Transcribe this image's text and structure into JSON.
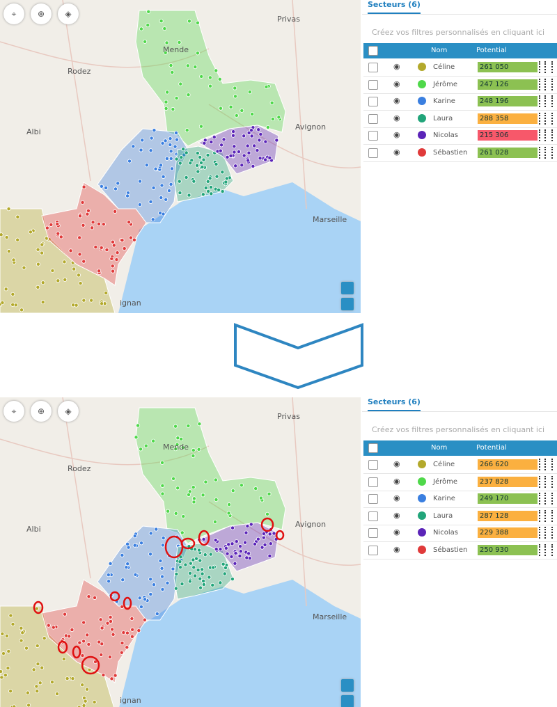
{
  "panels": [
    {
      "map": {
        "places": [
          "Privas",
          "Mende",
          "Rodez",
          "Albi",
          "Avignon",
          "Marseille",
          "ignan"
        ]
      },
      "sidebar": {
        "tab": "Secteurs (6)",
        "filter": "Créez vos filtres personnalisés en cliquant ici",
        "columns": [
          "Nom",
          "Potential"
        ],
        "rows": [
          {
            "name": "Céline",
            "color": "#b3a92c",
            "potential": "261 050",
            "status": "#8cc152"
          },
          {
            "name": "Jérôme",
            "color": "#4fd84a",
            "potential": "247 126",
            "status": "#8cc152"
          },
          {
            "name": "Karine",
            "color": "#3a7fe0",
            "potential": "248 196",
            "status": "#8cc152"
          },
          {
            "name": "Laura",
            "color": "#22a57a",
            "potential": "288 358",
            "status": "#fbb040"
          },
          {
            "name": "Nicolas",
            "color": "#5b24b8",
            "potential": "215 306",
            "status": "#f7586a"
          },
          {
            "name": "Sébastien",
            "color": "#e03a3a",
            "potential": "261 028",
            "status": "#8cc152"
          }
        ]
      }
    },
    {
      "map": {
        "places": [
          "Privas",
          "Mende",
          "Rodez",
          "Albi",
          "Avignon",
          "Marseille",
          "ignan"
        ]
      },
      "sidebar": {
        "tab": "Secteurs (6)",
        "filter": "Créez vos filtres personnalisés en cliquant ici",
        "columns": [
          "Nom",
          "Potential"
        ],
        "rows": [
          {
            "name": "Céline",
            "color": "#b3a92c",
            "potential": "266 620",
            "status": "#fbb040"
          },
          {
            "name": "Jérôme",
            "color": "#4fd84a",
            "potential": "237 828",
            "status": "#fbb040"
          },
          {
            "name": "Karine",
            "color": "#3a7fe0",
            "potential": "249 170",
            "status": "#8cc152"
          },
          {
            "name": "Laura",
            "color": "#22a57a",
            "potential": "287 128",
            "status": "#fbb040"
          },
          {
            "name": "Nicolas",
            "color": "#5b24b8",
            "potential": "229 388",
            "status": "#fbb040"
          },
          {
            "name": "Sébastien",
            "color": "#e03a3a",
            "potential": "250 930",
            "status": "#8cc152"
          }
        ]
      }
    }
  ]
}
